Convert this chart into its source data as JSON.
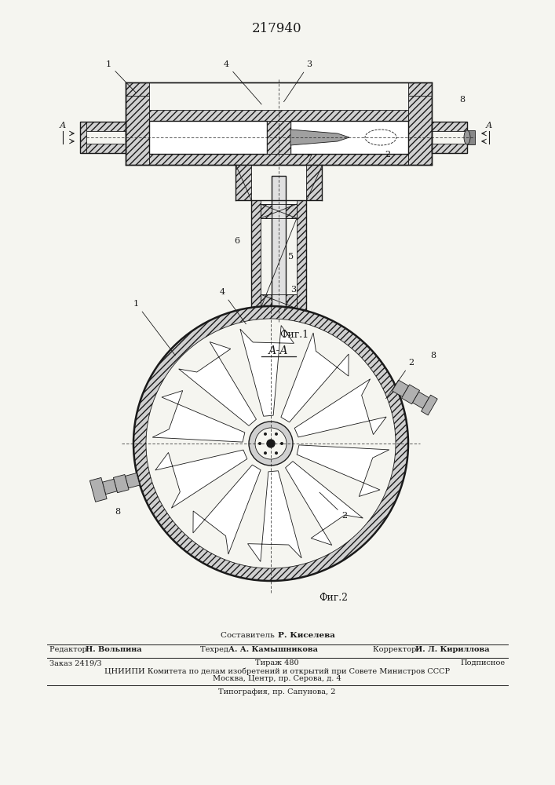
{
  "patent_number": "217940",
  "fig1_label": "Фиг.1",
  "fig2_label": "Фиг.2",
  "section_label": "А-А",
  "bg_color": "#f5f5f0",
  "line_color": "#1a1a1a",
  "hatch_color": "#555555"
}
